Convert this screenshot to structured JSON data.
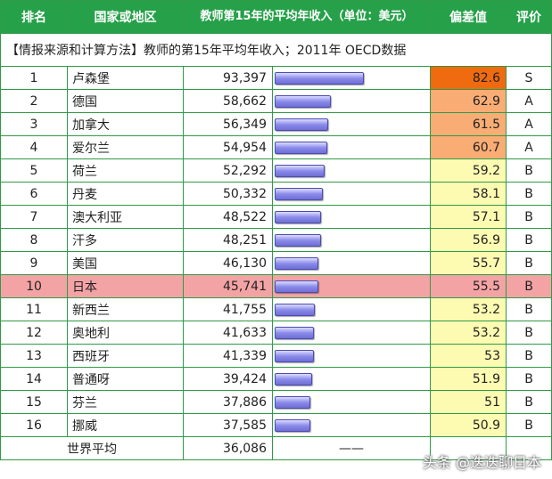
{
  "headers": {
    "rank": "排名",
    "country": "国家或地区",
    "income": "教师第15年的平均年收入（单位：美元）",
    "score": "偏差值",
    "grade": "评价"
  },
  "source_note": "【情报来源和计算方法】教师的第15年平均年收入；2011年 OECD数据",
  "rows": [
    {
      "rank": "1",
      "country": "卢森堡",
      "income": "93,397",
      "score": "82.6",
      "grade": "S",
      "score_color": "#f06a10",
      "income_value": 93397
    },
    {
      "rank": "2",
      "country": "德国",
      "income": "58,662",
      "score": "62.9",
      "grade": "A",
      "score_color": "#f9ad75",
      "income_value": 58662
    },
    {
      "rank": "3",
      "country": "加拿大",
      "income": "56,349",
      "score": "61.5",
      "grade": "A",
      "score_color": "#f9ad75",
      "income_value": 56349
    },
    {
      "rank": "4",
      "country": "爱尔兰",
      "income": "54,954",
      "score": "60.7",
      "grade": "A",
      "score_color": "#f9ad75",
      "income_value": 54954
    },
    {
      "rank": "5",
      "country": "荷兰",
      "income": "52,292",
      "score": "59.2",
      "grade": "B",
      "score_color": "#fdfbb2",
      "income_value": 52292
    },
    {
      "rank": "6",
      "country": "丹麦",
      "income": "50,332",
      "score": "58.1",
      "grade": "B",
      "score_color": "#fdfbb2",
      "income_value": 50332
    },
    {
      "rank": "7",
      "country": "澳大利亚",
      "income": "48,522",
      "score": "57.1",
      "grade": "B",
      "score_color": "#fdfbb2",
      "income_value": 48522
    },
    {
      "rank": "8",
      "country": "汗多",
      "income": "48,251",
      "score": "56.9",
      "grade": "B",
      "score_color": "#fdfbb2",
      "income_value": 48251
    },
    {
      "rank": "9",
      "country": "美国",
      "income": "46,130",
      "score": "55.7",
      "grade": "B",
      "score_color": "#fdfbb2",
      "income_value": 46130
    },
    {
      "rank": "10",
      "country": "日本",
      "income": "45,741",
      "score": "55.5",
      "grade": "B",
      "score_color": "#f4a3a5",
      "income_value": 45741,
      "highlight": true
    },
    {
      "rank": "11",
      "country": "新西兰",
      "income": "41,755",
      "score": "53.2",
      "grade": "B",
      "score_color": "#fdfbb2",
      "income_value": 41755
    },
    {
      "rank": "12",
      "country": "奥地利",
      "income": "41,633",
      "score": "53.2",
      "grade": "B",
      "score_color": "#fdfbb2",
      "income_value": 41633
    },
    {
      "rank": "13",
      "country": "西班牙",
      "income": "41,339",
      "score": "53",
      "grade": "B",
      "score_color": "#fdfbb2",
      "income_value": 41339
    },
    {
      "rank": "14",
      "country": "普通呀",
      "income": "39,424",
      "score": "51.9",
      "grade": "B",
      "score_color": "#fdfbb2",
      "income_value": 39424
    },
    {
      "rank": "15",
      "country": "芬兰",
      "income": "37,886",
      "score": "51",
      "grade": "B",
      "score_color": "#fdfbb2",
      "income_value": 37886
    },
    {
      "rank": "16",
      "country": "挪威",
      "income": "37,585",
      "score": "50.9",
      "grade": "B",
      "score_color": "#fdfbb2",
      "income_value": 37585
    }
  ],
  "average": {
    "label": "世界平均",
    "income": "36,086",
    "bar_placeholder": "——"
  },
  "watermark": "头条 @迭迭聊日本",
  "colors": {
    "header_green": "#27a04a",
    "border_green": "#2f9a47",
    "highlight_row": "#f4a3a5",
    "bar_blue": "#8b8bea"
  }
}
